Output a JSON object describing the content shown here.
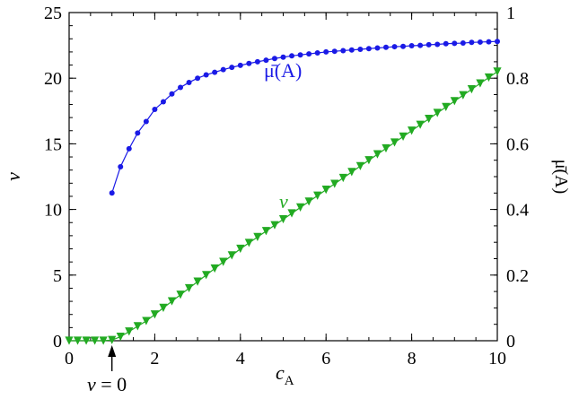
{
  "chart_data": {
    "type": "line",
    "xlabel": "c",
    "xlabel_sub": "A",
    "ylabel_left": "v",
    "ylabel_right": "μ̄(A)",
    "xlim": [
      0,
      10
    ],
    "ylim_left": [
      0,
      25
    ],
    "ylim_right": [
      0,
      1
    ],
    "x_ticks": [
      "0",
      "2",
      "4",
      "6",
      "8",
      "10"
    ],
    "y_left_ticks": [
      "0",
      "5",
      "10",
      "15",
      "20",
      "25"
    ],
    "y_right_ticks": [
      "0",
      "0.2",
      "0.4",
      "0.6",
      "0.8",
      "1"
    ],
    "grid": false,
    "series": [
      {
        "name": "μ̄(A)",
        "axis": "right",
        "color": "#1a1ae6",
        "marker": "circle",
        "x": [
          1.0,
          1.2,
          1.4,
          1.6,
          1.8,
          2.0,
          2.2,
          2.4,
          2.6,
          2.8,
          3.0,
          3.2,
          3.4,
          3.6,
          3.8,
          4.0,
          4.2,
          4.4,
          4.6,
          4.8,
          5.0,
          5.2,
          5.4,
          5.6,
          5.8,
          6.0,
          6.2,
          6.4,
          6.6,
          6.8,
          7.0,
          7.2,
          7.4,
          7.6,
          7.8,
          8.0,
          8.2,
          8.4,
          8.6,
          8.8,
          9.0,
          9.2,
          9.4,
          9.6,
          9.8,
          10.0
        ],
        "y": [
          0.45,
          0.53,
          0.585,
          0.633,
          0.668,
          0.705,
          0.728,
          0.752,
          0.772,
          0.787,
          0.8,
          0.81,
          0.818,
          0.826,
          0.833,
          0.839,
          0.845,
          0.85,
          0.855,
          0.86,
          0.864,
          0.868,
          0.871,
          0.874,
          0.877,
          0.88,
          0.882,
          0.884,
          0.886,
          0.888,
          0.89,
          0.892,
          0.894,
          0.896,
          0.897,
          0.899,
          0.9,
          0.902,
          0.903,
          0.905,
          0.906,
          0.907,
          0.909,
          0.91,
          0.911,
          0.912
        ]
      },
      {
        "name": "v",
        "axis": "left",
        "color": "#22aa22",
        "marker": "triangle-down",
        "x": [
          0.0,
          0.2,
          0.4,
          0.6,
          0.8,
          1.0,
          1.2,
          1.4,
          1.6,
          1.8,
          2.0,
          2.2,
          2.4,
          2.6,
          2.8,
          3.0,
          3.2,
          3.4,
          3.6,
          3.8,
          4.0,
          4.2,
          4.4,
          4.6,
          4.8,
          5.0,
          5.2,
          5.4,
          5.6,
          5.8,
          6.0,
          6.2,
          6.4,
          6.6,
          6.8,
          7.0,
          7.2,
          7.4,
          7.6,
          7.8,
          8.0,
          8.2,
          8.4,
          8.6,
          8.8,
          9.0,
          9.2,
          9.4,
          9.6,
          9.8,
          10.0
        ],
        "y": [
          0.0,
          0.0,
          0.0,
          0.0,
          0.0,
          0.05,
          0.3,
          0.7,
          1.1,
          1.5,
          2.0,
          2.5,
          3.0,
          3.5,
          4.0,
          4.5,
          5.0,
          5.5,
          6.0,
          6.5,
          7.0,
          7.45,
          7.9,
          8.35,
          8.8,
          9.25,
          9.7,
          10.15,
          10.6,
          11.05,
          11.5,
          11.95,
          12.4,
          12.85,
          13.3,
          13.75,
          14.2,
          14.65,
          15.1,
          15.55,
          16.0,
          16.45,
          16.9,
          17.35,
          17.8,
          18.25,
          18.7,
          19.15,
          19.6,
          20.05,
          20.5
        ]
      }
    ],
    "annotations": [
      {
        "text_italic": "v",
        "text_rest": " = 0",
        "points_to_x": 1.0
      },
      {
        "label": "μ̄(A)",
        "series": "μ̄(A)"
      },
      {
        "label": "v",
        "series": "v"
      }
    ]
  }
}
